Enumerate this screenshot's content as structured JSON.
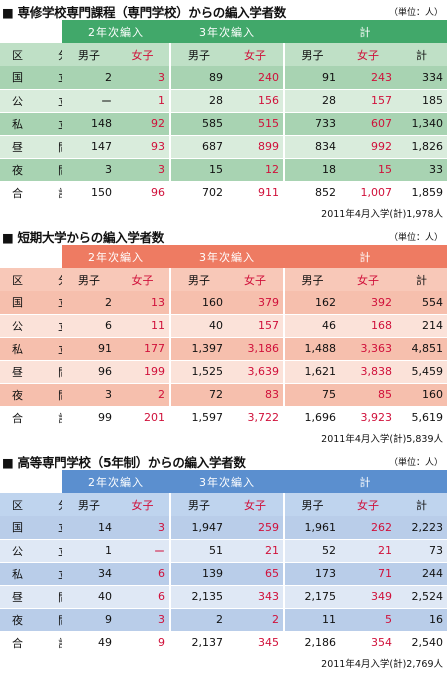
{
  "sections": [
    {
      "title": "■ 専修学校専門課程（専門学校）からの編入学者数",
      "unit": "（単位：人）",
      "group_headers": [
        "2年次編入",
        "3年次編入",
        "計"
      ],
      "col_headers": [
        "区　分",
        "男子",
        "女子",
        "男子",
        "女子",
        "男子",
        "女子",
        "計"
      ],
      "rows": [
        [
          "国　立",
          "2",
          "3",
          "89",
          "240",
          "91",
          "243",
          "334"
        ],
        [
          "公　立",
          "ー",
          "1",
          "28",
          "156",
          "28",
          "157",
          "185"
        ],
        [
          "私　立",
          "148",
          "92",
          "585",
          "515",
          "733",
          "607",
          "1,340"
        ],
        [
          "昼　間",
          "147",
          "93",
          "687",
          "899",
          "834",
          "992",
          "1,826"
        ],
        [
          "夜　間",
          "3",
          "3",
          "15",
          "12",
          "18",
          "15",
          "33"
        ],
        [
          "合　計",
          "150",
          "96",
          "702",
          "911",
          "852",
          "1,007",
          "1,859"
        ]
      ],
      "footnote": "2011年4月入学(計)1,978人"
    },
    {
      "title": "■ 短期大学からの編入学者数",
      "unit": "（単位：人）",
      "group_headers": [
        "2年次編入",
        "3年次編入",
        "計"
      ],
      "col_headers": [
        "区　分",
        "男子",
        "女子",
        "男子",
        "女子",
        "男子",
        "女子",
        "計"
      ],
      "rows": [
        [
          "国　立",
          "2",
          "13",
          "160",
          "379",
          "162",
          "392",
          "554"
        ],
        [
          "公　立",
          "6",
          "11",
          "40",
          "157",
          "46",
          "168",
          "214"
        ],
        [
          "私　立",
          "91",
          "177",
          "1,397",
          "3,186",
          "1,488",
          "3,363",
          "4,851"
        ],
        [
          "昼　間",
          "96",
          "199",
          "1,525",
          "3,639",
          "1,621",
          "3,838",
          "5,459"
        ],
        [
          "夜　間",
          "3",
          "2",
          "72",
          "83",
          "75",
          "85",
          "160"
        ],
        [
          "合　計",
          "99",
          "201",
          "1,597",
          "3,722",
          "1,696",
          "3,923",
          "5,619"
        ]
      ],
      "footnote": "2011年4月入学(計)5,839人"
    },
    {
      "title": "■ 高等専門学校（5年制）からの編入学者数",
      "unit": "（単位：人）",
      "group_headers": [
        "2年次編入",
        "3年次編入",
        "計"
      ],
      "col_headers": [
        "区　分",
        "男子",
        "女子",
        "男子",
        "女子",
        "男子",
        "女子",
        "計"
      ],
      "rows": [
        [
          "国　立",
          "14",
          "3",
          "1,947",
          "259",
          "1,961",
          "262",
          "2,223"
        ],
        [
          "公　立",
          "1",
          "ー",
          "51",
          "21",
          "52",
          "21",
          "73"
        ],
        [
          "私　立",
          "34",
          "6",
          "139",
          "65",
          "173",
          "71",
          "244"
        ],
        [
          "昼　間",
          "40",
          "6",
          "2,135",
          "343",
          "2,175",
          "349",
          "2,524"
        ],
        [
          "夜　間",
          "9",
          "3",
          "2",
          "2",
          "11",
          "5",
          "16"
        ],
        [
          "合　計",
          "49",
          "9",
          "2,137",
          "345",
          "2,186",
          "354",
          "2,540"
        ]
      ],
      "footnote": "2011年4月入学(計)2,769人"
    }
  ],
  "colors": {
    "green": "#41a86a",
    "salmon": "#ee7b62",
    "blue": "#5b8fcf",
    "female_value": "#d0103a"
  }
}
